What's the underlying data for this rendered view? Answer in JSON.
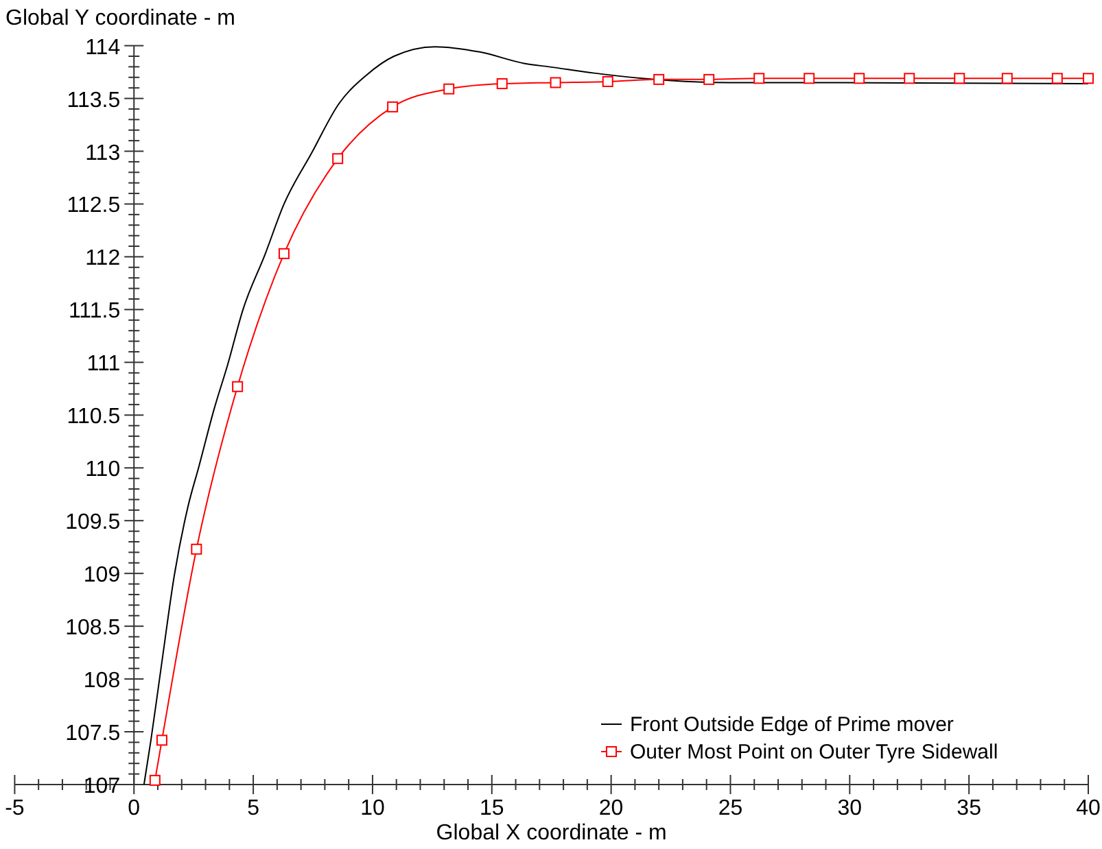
{
  "chart_data": {
    "type": "line",
    "xlabel": "Global X coordinate - m",
    "ylabel": "Global Y coordinate - m",
    "xlim": [
      -5,
      40
    ],
    "ylim": [
      107,
      114
    ],
    "xticks": [
      -5,
      {
        "value": -4,
        "label": null
      },
      {
        "value": -3,
        "label": null
      },
      {
        "value": -2,
        "label": null
      },
      {
        "value": -1,
        "label": null
      },
      0,
      {
        "value": 1,
        "label": null
      },
      {
        "value": 2,
        "label": null
      },
      {
        "value": 3,
        "label": null
      },
      {
        "value": 4,
        "label": null
      },
      5,
      {
        "value": 6,
        "label": null
      },
      {
        "value": 7,
        "label": null
      },
      {
        "value": 8,
        "label": null
      },
      {
        "value": 9,
        "label": null
      },
      10,
      {
        "value": 11,
        "label": null
      },
      {
        "value": 12,
        "label": null
      },
      {
        "value": 13,
        "label": null
      },
      {
        "value": 14,
        "label": null
      },
      15,
      {
        "value": 16,
        "label": null
      },
      {
        "value": 17,
        "label": null
      },
      {
        "value": 18,
        "label": null
      },
      {
        "value": 19,
        "label": null
      },
      20,
      {
        "value": 21,
        "label": null
      },
      {
        "value": 22,
        "label": null
      },
      {
        "value": 23,
        "label": null
      },
      {
        "value": 24,
        "label": null
      },
      25,
      {
        "value": 26,
        "label": null
      },
      {
        "value": 27,
        "label": null
      },
      {
        "value": 28,
        "label": null
      },
      {
        "value": 29,
        "label": null
      },
      30,
      {
        "value": 31,
        "label": null
      },
      {
        "value": 32,
        "label": null
      },
      {
        "value": 33,
        "label": null
      },
      {
        "value": 34,
        "label": null
      },
      35,
      {
        "value": 36,
        "label": null
      },
      {
        "value": 37,
        "label": null
      },
      {
        "value": 38,
        "label": null
      },
      {
        "value": 39,
        "label": null
      },
      40
    ],
    "yticks": [
      107,
      {
        "value": 107.1,
        "label": null
      },
      {
        "value": 107.2,
        "label": null
      },
      {
        "value": 107.3,
        "label": null
      },
      {
        "value": 107.4,
        "label": null
      },
      107.5,
      {
        "value": 107.6,
        "label": null
      },
      {
        "value": 107.7,
        "label": null
      },
      {
        "value": 107.8,
        "label": null
      },
      {
        "value": 107.9,
        "label": null
      },
      108,
      {
        "value": 108.1,
        "label": null
      },
      {
        "value": 108.2,
        "label": null
      },
      {
        "value": 108.3,
        "label": null
      },
      {
        "value": 108.4,
        "label": null
      },
      108.5,
      {
        "value": 108.6,
        "label": null
      },
      {
        "value": 108.7,
        "label": null
      },
      {
        "value": 108.8,
        "label": null
      },
      {
        "value": 108.9,
        "label": null
      },
      109,
      {
        "value": 109.1,
        "label": null
      },
      {
        "value": 109.2,
        "label": null
      },
      {
        "value": 109.3,
        "label": null
      },
      {
        "value": 109.4,
        "label": null
      },
      109.5,
      {
        "value": 109.6,
        "label": null
      },
      {
        "value": 109.7,
        "label": null
      },
      {
        "value": 109.8,
        "label": null
      },
      {
        "value": 109.9,
        "label": null
      },
      110,
      {
        "value": 110.1,
        "label": null
      },
      {
        "value": 110.2,
        "label": null
      },
      {
        "value": 110.3,
        "label": null
      },
      {
        "value": 110.4,
        "label": null
      },
      110.5,
      {
        "value": 110.6,
        "label": null
      },
      {
        "value": 110.7,
        "label": null
      },
      {
        "value": 110.8,
        "label": null
      },
      {
        "value": 110.9,
        "label": null
      },
      111,
      {
        "value": 111.1,
        "label": null
      },
      {
        "value": 111.2,
        "label": null
      },
      {
        "value": 111.3,
        "label": null
      },
      {
        "value": 111.4,
        "label": null
      },
      111.5,
      {
        "value": 111.6,
        "label": null
      },
      {
        "value": 111.7,
        "label": null
      },
      {
        "value": 111.8,
        "label": null
      },
      {
        "value": 111.9,
        "label": null
      },
      112,
      {
        "value": 112.1,
        "label": null
      },
      {
        "value": 112.2,
        "label": null
      },
      {
        "value": 112.3,
        "label": null
      },
      {
        "value": 112.4,
        "label": null
      },
      112.5,
      {
        "value": 112.6,
        "label": null
      },
      {
        "value": 112.7,
        "label": null
      },
      {
        "value": 112.8,
        "label": null
      },
      {
        "value": 112.9,
        "label": null
      },
      113,
      {
        "value": 113.1,
        "label": null
      },
      {
        "value": 113.2,
        "label": null
      },
      {
        "value": 113.3,
        "label": null
      },
      {
        "value": 113.4,
        "label": null
      },
      113.5,
      {
        "value": 113.6,
        "label": null
      },
      {
        "value": 113.7,
        "label": null
      },
      {
        "value": 113.8,
        "label": null
      },
      {
        "value": 113.9,
        "label": null
      },
      114
    ],
    "legend": "bottom right",
    "grid": false,
    "series": [
      {
        "name": "Front Outside Edge of Prime mover",
        "color": "#000000",
        "marker": "none",
        "x": [
          0.42,
          0.71,
          1.17,
          1.69,
          2.26,
          2.73,
          3.35,
          3.93,
          4.57,
          5.49,
          6.29,
          7.44,
          8.59,
          9.74,
          10.9,
          12.62,
          14.5,
          16.4,
          17.4,
          19.3,
          21.3,
          25.0,
          27.0,
          40.0
        ],
        "values": [
          107.0,
          107.42,
          108.16,
          108.98,
          109.63,
          110.02,
          110.55,
          110.98,
          111.5,
          112.02,
          112.5,
          112.98,
          113.45,
          113.72,
          113.9,
          113.99,
          113.94,
          113.83,
          113.8,
          113.74,
          113.69,
          113.65,
          113.65,
          113.64
        ]
      },
      {
        "name": "Outer Most Point on Outer Tyre Sidewall",
        "color": "#ff0000",
        "marker": "square",
        "x": [
          0.88,
          1.17,
          2.62,
          4.34,
          6.29,
          8.54,
          10.84,
          13.2,
          15.43,
          17.67,
          19.86,
          22.0,
          24.1,
          26.2,
          28.3,
          30.4,
          32.5,
          34.6,
          36.6,
          38.7,
          40.0
        ],
        "values": [
          107.04,
          107.42,
          109.23,
          110.77,
          112.03,
          112.93,
          113.42,
          113.59,
          113.64,
          113.65,
          113.66,
          113.68,
          113.68,
          113.69,
          113.69,
          113.69,
          113.69,
          113.69,
          113.69,
          113.69,
          113.69
        ]
      }
    ]
  }
}
